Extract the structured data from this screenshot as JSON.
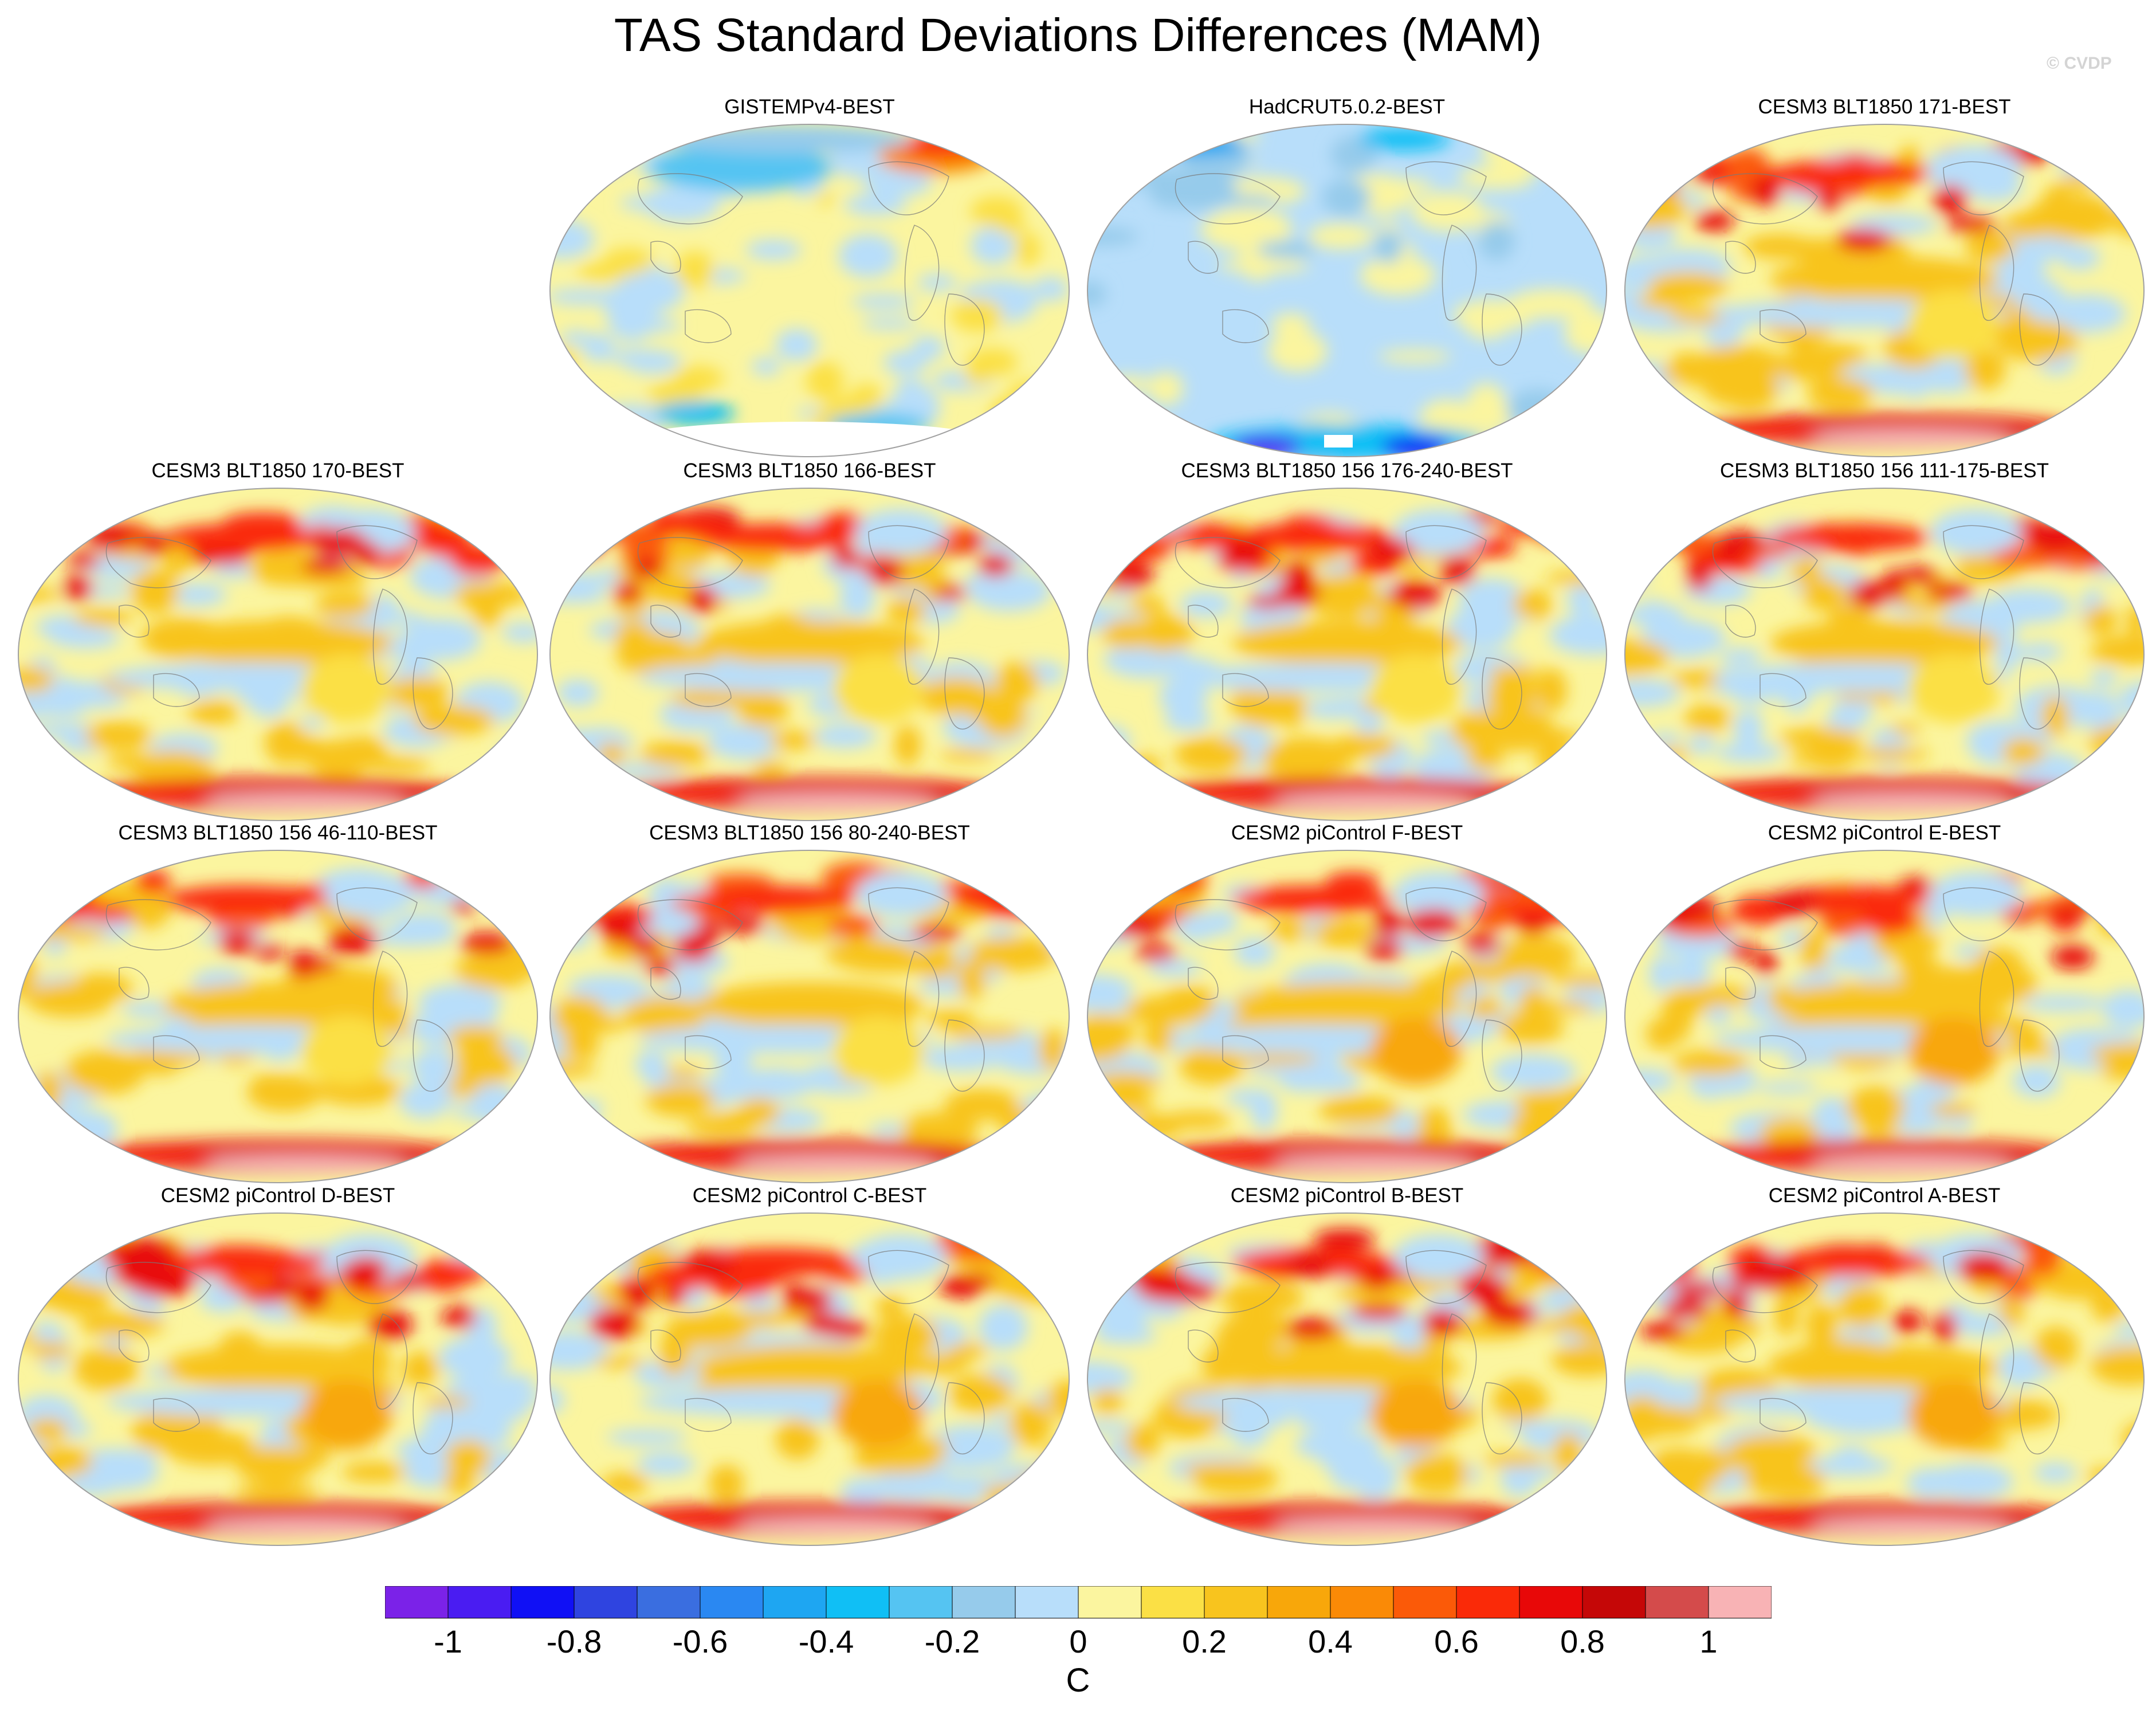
{
  "title": "TAS Standard Deviations Differences (MAM)",
  "watermark": "© CVDP",
  "panels": [
    {
      "label": "GISTEMPv4-BEST",
      "style": "gistemp"
    },
    {
      "label": "HadCRUT5.0.2-BEST",
      "style": "hadcrut"
    },
    {
      "label": "CESM3 BLT1850 171-BEST",
      "style": "cesm3"
    },
    {
      "label": "CESM3 BLT1850 170-BEST",
      "style": "cesm3"
    },
    {
      "label": "CESM3 BLT1850 166-BEST",
      "style": "cesm3"
    },
    {
      "label": "CESM3 BLT1850 156 176-240-BEST",
      "style": "cesm3"
    },
    {
      "label": "CESM3 BLT1850 156 111-175-BEST",
      "style": "cesm3"
    },
    {
      "label": "CESM3 BLT1850 156 46-110-BEST",
      "style": "cesm3"
    },
    {
      "label": "CESM3 BLT1850 156 80-240-BEST",
      "style": "cesm3"
    },
    {
      "label": "CESM2 piControl F-BEST",
      "style": "cesm2"
    },
    {
      "label": "CESM2 piControl E-BEST",
      "style": "cesm2"
    },
    {
      "label": "CESM2 piControl D-BEST",
      "style": "cesm2"
    },
    {
      "label": "CESM2 piControl C-BEST",
      "style": "cesm2"
    },
    {
      "label": "CESM2 piControl B-BEST",
      "style": "cesm2"
    },
    {
      "label": "CESM2 piControl A-BEST",
      "style": "cesm2"
    }
  ],
  "colorbar": {
    "colors": [
      "#7b22e8",
      "#4a1cf2",
      "#1010f5",
      "#2f44e0",
      "#3a6ee0",
      "#2a88f2",
      "#1ea6f2",
      "#10bff5",
      "#55c4f2",
      "#96cbeb",
      "#b8defa",
      "#fbf59f",
      "#fbe045",
      "#f8c41e",
      "#f8a70a",
      "#fa8a06",
      "#fb5a08",
      "#fa2a08",
      "#e80808",
      "#c50707",
      "#d44b4b",
      "#f8b3b5"
    ],
    "levels": [
      -1.1,
      -1,
      -0.9,
      -0.8,
      -0.7,
      -0.6,
      -0.5,
      -0.4,
      -0.3,
      -0.2,
      -0.1,
      0,
      0.1,
      0.2,
      0.3,
      0.4,
      0.5,
      0.6,
      0.7,
      0.8,
      0.9,
      1,
      1.1
    ],
    "tick_labels": [
      "-1",
      "-0.8",
      "-0.6",
      "-0.4",
      "-0.2",
      "0",
      "0.2",
      "0.4",
      "0.6",
      "0.8",
      "1"
    ],
    "tick_values": [
      -1,
      -0.8,
      -0.6,
      -0.4,
      -0.2,
      0,
      0.2,
      0.4,
      0.6,
      0.8,
      1
    ],
    "units": "C"
  }
}
